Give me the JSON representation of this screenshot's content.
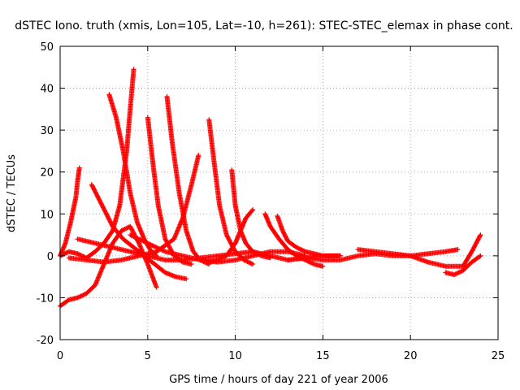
{
  "chart_data": {
    "type": "scatter",
    "title": "dSTEC Iono. truth (xmis, Lon=105, Lat=-10, h=261): STEC-STEC_elemax in phase cont.",
    "xlabel": "GPS time / hours of day 221 of year 2006",
    "ylabel": "dSTEC  / TECUs",
    "xlim": [
      0,
      25
    ],
    "ylim": [
      -20,
      50
    ],
    "xticks": [
      0,
      5,
      10,
      15,
      20,
      25
    ],
    "yticks": [
      -20,
      -10,
      0,
      10,
      20,
      30,
      40,
      50
    ],
    "grid": true,
    "marker": "plus",
    "color": "#ff0000",
    "series": [
      {
        "x": [
          0,
          0.5,
          1.0,
          1.5,
          2.0,
          2.5,
          3.0,
          3.5,
          4.0,
          4.5,
          5.0,
          5.5
        ],
        "y": [
          -12,
          -10.5,
          -10,
          -9,
          -7,
          -2,
          3,
          6,
          7,
          3,
          -2,
          -7.5
        ]
      },
      {
        "x": [
          0,
          0.3,
          0.6,
          0.9,
          1.0,
          1.1
        ],
        "y": [
          0,
          3,
          8,
          14,
          18,
          21
        ]
      },
      {
        "x": [
          0,
          0.5,
          1.0,
          1.5,
          2.0,
          2.5,
          3.0,
          3.4,
          3.8,
          4.0,
          4.2
        ],
        "y": [
          0,
          1,
          0.5,
          -0.5,
          1,
          3,
          6,
          12,
          25,
          35,
          44.5
        ]
      },
      {
        "x": [
          2.8,
          3.2,
          3.6,
          4.0,
          4.4,
          4.8,
          5.2,
          5.5
        ],
        "y": [
          38.5,
          33,
          25,
          15,
          8,
          4,
          1,
          0
        ]
      },
      {
        "x": [
          1.8,
          2.4,
          3.0,
          3.6,
          4.2,
          4.8,
          5.4,
          6.0,
          6.6,
          7.2
        ],
        "y": [
          17,
          12,
          7,
          4,
          2,
          0,
          -2,
          -4,
          -5,
          -5.5
        ]
      },
      {
        "x": [
          5.0,
          5.3,
          5.6,
          6.0,
          6.5,
          7.0,
          7.5
        ],
        "y": [
          33,
          22,
          12,
          4,
          0,
          -1.5,
          -2
        ]
      },
      {
        "x": [
          6.1,
          6.4,
          6.8,
          7.2,
          7.6,
          8.0,
          8.5
        ],
        "y": [
          38,
          27,
          15,
          6,
          1,
          -1,
          -2
        ]
      },
      {
        "x": [
          0.5,
          1.5,
          2.5,
          3.5,
          4.5,
          5.5,
          6.5,
          7.0,
          7.5,
          7.9
        ],
        "y": [
          -0.5,
          -1,
          -1.5,
          -1,
          0,
          1,
          4,
          9,
          17,
          24
        ]
      },
      {
        "x": [
          8.5,
          8.8,
          9.1,
          9.5,
          10.0,
          10.5,
          11.0
        ],
        "y": [
          32.5,
          22,
          12,
          5,
          1,
          -1,
          -2
        ]
      },
      {
        "x": [
          9.8,
          10.0,
          10.3,
          10.6,
          11.0,
          11.5,
          12.0
        ],
        "y": [
          20.5,
          12,
          6,
          3,
          1,
          0,
          -0.5
        ]
      },
      {
        "x": [
          8.0,
          8.5,
          9.0,
          9.5,
          10.0,
          10.3,
          10.6,
          11.0
        ],
        "y": [
          -1,
          -1.5,
          -1,
          0,
          3,
          6,
          9,
          11
        ]
      },
      {
        "x": [
          11.7,
          12.0,
          12.5,
          13.0,
          13.5,
          14.0,
          14.5,
          15.0
        ],
        "y": [
          10,
          7,
          4,
          1.5,
          0,
          -1,
          -2,
          -2.5
        ]
      },
      {
        "x": [
          12.4,
          12.7,
          13.0,
          13.5,
          14.0,
          14.5,
          15.0,
          15.5,
          16.0
        ],
        "y": [
          9.5,
          6,
          3.5,
          2,
          1,
          0.5,
          0,
          0,
          0
        ]
      },
      {
        "x": [
          13.0,
          14.0,
          15.0,
          16.0,
          17.0,
          18.0,
          19.0,
          20.0,
          21.0,
          22.0,
          22.7
        ],
        "y": [
          -1,
          -0.5,
          -1,
          -1,
          0,
          0.5,
          0,
          0,
          0.5,
          1,
          1.5
        ]
      },
      {
        "x": [
          17.0,
          18.0,
          19.0,
          20.0,
          21.0,
          22.0,
          23.0,
          23.5,
          24.0
        ],
        "y": [
          1.5,
          1,
          0.5,
          0,
          -1.5,
          -2.5,
          -2.5,
          1,
          5
        ]
      },
      {
        "x": [
          22.0,
          22.5,
          23.0,
          23.5,
          24.0
        ],
        "y": [
          -4,
          -4.5,
          -3.5,
          -1.5,
          0
        ]
      },
      {
        "x": [
          1.0,
          2.0,
          3.0,
          4.0,
          5.0,
          6.0,
          7.0,
          8.0,
          9.0,
          10.0,
          11.0,
          12.0,
          13.0,
          14.0,
          15.0,
          16.0
        ],
        "y": [
          4,
          3,
          2,
          1,
          0,
          -1,
          -1,
          -0.5,
          0,
          0.5,
          1,
          0,
          -1,
          -0.5,
          0,
          0
        ]
      },
      {
        "x": [
          4.0,
          5.0,
          6.0,
          7.0,
          8.0,
          9.0,
          10.0,
          11.0,
          12.0,
          13.0,
          14.0
        ],
        "y": [
          5,
          3,
          1,
          0,
          -1,
          -1.5,
          -1,
          0,
          1,
          1,
          0
        ]
      }
    ]
  }
}
